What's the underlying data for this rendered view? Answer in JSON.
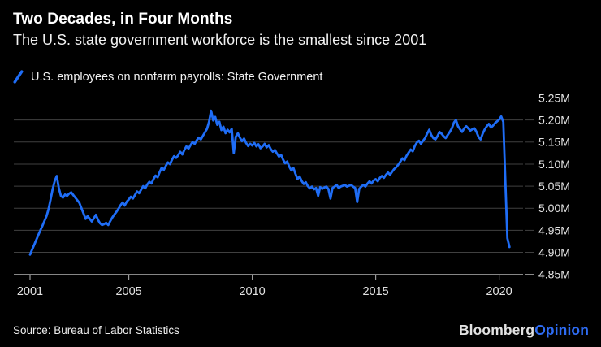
{
  "header": {
    "title": "Two Decades, in Four Months",
    "subtitle": "The U.S. state government workforce is the smallest since 2001"
  },
  "legend": {
    "label": "U.S. employees on nonfarm payrolls: State Government",
    "marker": "blue-slash"
  },
  "footer": {
    "source": "Source: Bureau of Labor Statistics",
    "logo_bloomberg": "Bloomberg",
    "logo_opinion": "Opinion"
  },
  "colors": {
    "background": "#000000",
    "line": "#1f6df6",
    "grid": "#404040",
    "axis": "#9a9a9a",
    "tick_label": "#e3e3e3",
    "logo_blue": "#2e6cf4"
  },
  "chart_data": {
    "type": "line",
    "title": "Two Decades, in Four Months",
    "series_name": "U.S. employees on nonfarm payrolls: State Government",
    "unit": "employees, millions",
    "frequency": "monthly",
    "start": "2001-01",
    "end": "2020-06",
    "grid": "horizontal",
    "axis_side": "right",
    "ylim": [
      4.85,
      5.27
    ],
    "x_ticks": [
      2001,
      2005,
      2010,
      2015,
      2020
    ],
    "y_ticks": [
      {
        "label": "5.25M",
        "value": 5.25
      },
      {
        "label": "5.20M",
        "value": 5.2
      },
      {
        "label": "5.15M",
        "value": 5.15
      },
      {
        "label": "5.10M",
        "value": 5.1
      },
      {
        "label": "5.05M",
        "value": 5.05
      },
      {
        "label": "5.00M",
        "value": 5.0
      },
      {
        "label": "4.95M",
        "value": 4.95
      },
      {
        "label": "4.90M",
        "value": 4.9
      },
      {
        "label": "4.85M",
        "value": 4.85
      }
    ],
    "values_thousands": [
      4895,
      4906,
      4917,
      4928,
      4939,
      4950,
      4960,
      4971,
      4982,
      4998,
      5020,
      5044,
      5062,
      5073,
      5045,
      5028,
      5024,
      5031,
      5028,
      5033,
      5036,
      5030,
      5024,
      5018,
      5012,
      5000,
      4988,
      4976,
      4982,
      4976,
      4970,
      4977,
      4985,
      4974,
      4966,
      4962,
      4964,
      4967,
      4962,
      4971,
      4979,
      4986,
      4992,
      4999,
      5007,
      5013,
      5006,
      5015,
      5020,
      5026,
      5022,
      5030,
      5038,
      5034,
      5042,
      5050,
      5045,
      5054,
      5060,
      5056,
      5066,
      5074,
      5070,
      5082,
      5092,
      5087,
      5096,
      5104,
      5100,
      5110,
      5118,
      5114,
      5120,
      5128,
      5122,
      5132,
      5140,
      5135,
      5143,
      5150,
      5146,
      5154,
      5160,
      5156,
      5164,
      5172,
      5180,
      5196,
      5221,
      5199,
      5207,
      5189,
      5196,
      5177,
      5185,
      5170,
      5178,
      5172,
      5180,
      5125,
      5162,
      5170,
      5160,
      5152,
      5158,
      5148,
      5141,
      5146,
      5142,
      5148,
      5140,
      5145,
      5136,
      5140,
      5146,
      5138,
      5143,
      5134,
      5128,
      5132,
      5124,
      5117,
      5121,
      5110,
      5102,
      5106,
      5094,
      5086,
      5091,
      5078,
      5066,
      5072,
      5062,
      5055,
      5059,
      5050,
      5045,
      5049,
      5043,
      5046,
      5028,
      5048,
      5044,
      5047,
      5049,
      5044,
      5022,
      5046,
      5049,
      5053,
      5046,
      5049,
      5051,
      5053,
      5049,
      5051,
      5053,
      5049,
      5046,
      5014,
      5044,
      5049,
      5053,
      5049,
      5056,
      5061,
      5056,
      5063,
      5066,
      5061,
      5069,
      5073,
      5069,
      5076,
      5081,
      5076,
      5083,
      5089,
      5093,
      5099,
      5106,
      5113,
      5109,
      5119,
      5126,
      5133,
      5129,
      5141,
      5149,
      5153,
      5146,
      5153,
      5159,
      5169,
      5178,
      5166,
      5159,
      5156,
      5163,
      5173,
      5169,
      5163,
      5159,
      5166,
      5173,
      5181,
      5194,
      5200,
      5186,
      5179,
      5173,
      5181,
      5186,
      5181,
      5176,
      5179,
      5181,
      5173,
      5161,
      5156,
      5169,
      5179,
      5186,
      5191,
      5183,
      5187,
      5193,
      5197,
      5201,
      5208,
      5196,
      5062,
      4932,
      4912
    ]
  }
}
